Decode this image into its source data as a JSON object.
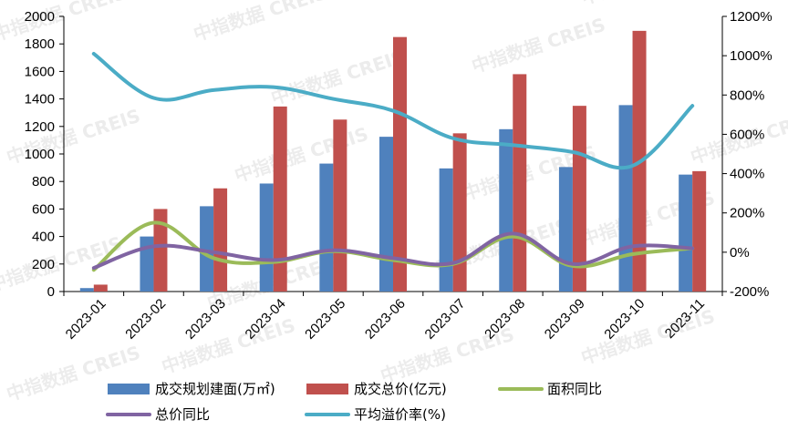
{
  "watermark": "中指数据 CREIS",
  "chart_data": {
    "type": "bar",
    "categories": [
      "2023-01",
      "2023-02",
      "2023-03",
      "2023-04",
      "2023-05",
      "2023-06",
      "2023-07",
      "2023-08",
      "2023-09",
      "2023-10",
      "2023-11"
    ],
    "series": [
      {
        "name": "成交规划建面(万㎡)",
        "kind": "bar",
        "axis": "left",
        "color": "#4f81bd",
        "values": [
          25,
          400,
          620,
          785,
          930,
          1125,
          895,
          1180,
          905,
          1355,
          850
        ]
      },
      {
        "name": "成交总价(亿元)",
        "kind": "bar",
        "axis": "left",
        "color": "#c0504d",
        "values": [
          50,
          600,
          750,
          1345,
          1250,
          1850,
          1150,
          1580,
          1350,
          1895,
          875
        ]
      },
      {
        "name": "面积同比",
        "kind": "line",
        "axis": "right",
        "color": "#9bbb59",
        "values": [
          -90,
          150,
          -30,
          -50,
          5,
          -40,
          -60,
          80,
          -70,
          -10,
          20
        ]
      },
      {
        "name": "总价同比",
        "kind": "line",
        "axis": "right",
        "color": "#8064a2",
        "values": [
          -80,
          30,
          0,
          -40,
          10,
          -30,
          -55,
          95,
          -60,
          30,
          20
        ]
      },
      {
        "name": "平均溢价率(%)",
        "kind": "line",
        "axis": "right",
        "color": "#4bacc6",
        "values": [
          1010,
          785,
          825,
          840,
          780,
          720,
          580,
          545,
          510,
          440,
          745
        ]
      }
    ],
    "left_axis": {
      "min": 0,
      "max": 2000,
      "step": 200,
      "ticks": [
        "0",
        "200",
        "400",
        "600",
        "800",
        "1000",
        "1200",
        "1400",
        "1600",
        "1800",
        "2000"
      ]
    },
    "right_axis": {
      "min": -200,
      "max": 1200,
      "step": 200,
      "ticks": [
        "-200%",
        "0%",
        "200%",
        "400%",
        "600%",
        "800%",
        "1000%",
        "1200%"
      ]
    },
    "legend_position": "bottom"
  }
}
